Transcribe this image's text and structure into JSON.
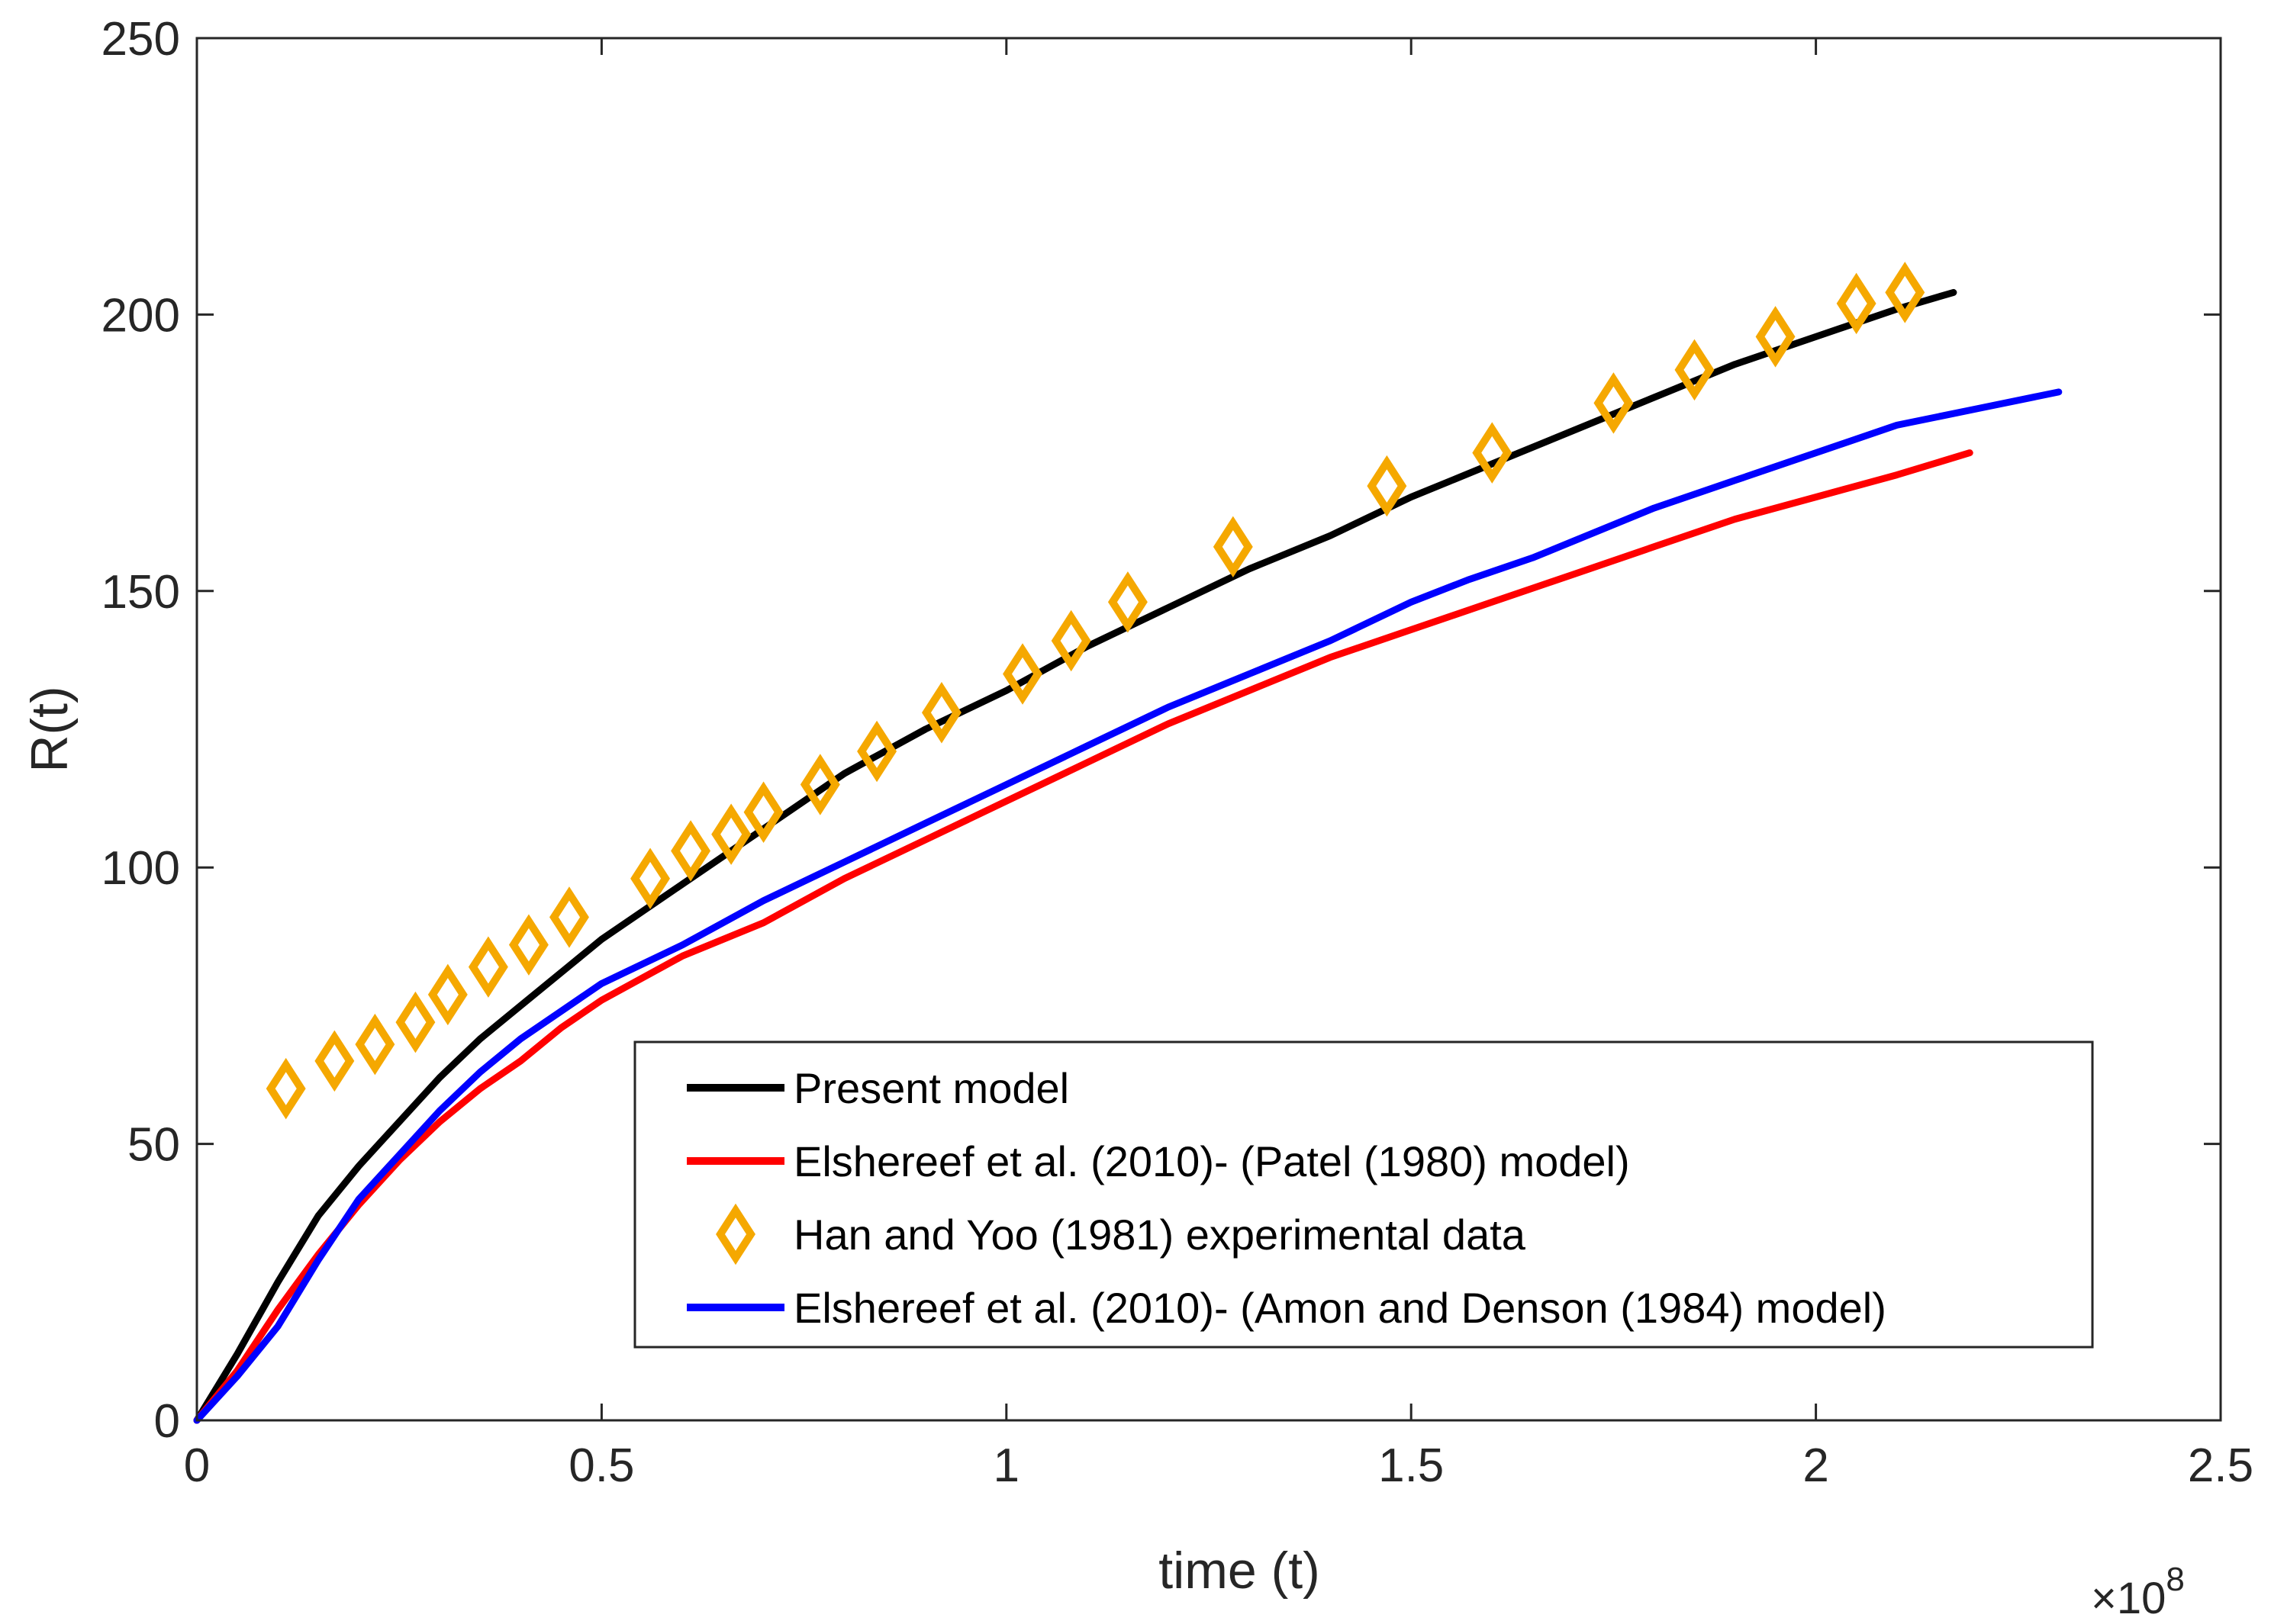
{
  "chart_data": {
    "type": "line",
    "title": "",
    "xlabel": "time (t)",
    "ylabel": "R(t)",
    "x_exponent_base": "×10",
    "x_exponent_power": "8",
    "xlim": [
      0,
      2.5
    ],
    "ylim": [
      0,
      250
    ],
    "xticks": [
      0,
      0.5,
      1,
      1.5,
      2,
      2.5
    ],
    "xtick_labels": [
      "0",
      "0.5",
      "1",
      "1.5",
      "2",
      "2.5"
    ],
    "yticks": [
      0,
      50,
      100,
      150,
      200,
      250
    ],
    "ytick_labels": [
      "0",
      "50",
      "100",
      "150",
      "200",
      "250"
    ],
    "grid": false,
    "legend_position": "bottom-right",
    "series": [
      {
        "name": "Present model",
        "kind": "line",
        "color": "#000000",
        "x": [
          0,
          0.05,
          0.1,
          0.15,
          0.2,
          0.25,
          0.3,
          0.35,
          0.4,
          0.45,
          0.5,
          0.6,
          0.7,
          0.8,
          0.9,
          1.0,
          1.1,
          1.2,
          1.3,
          1.4,
          1.5,
          1.6,
          1.7,
          1.8,
          1.9,
          2.0,
          2.1,
          2.17
        ],
        "y": [
          0,
          12,
          25,
          37,
          46,
          54,
          62,
          69,
          75,
          81,
          87,
          97,
          107,
          117,
          125,
          132,
          140,
          147,
          154,
          160,
          167,
          173,
          179,
          185,
          191,
          196,
          201,
          204
        ]
      },
      {
        "name": "Elshereef et al. (2010)- (Patel (1980) model)",
        "kind": "line",
        "color": "#ff0000",
        "x": [
          0,
          0.05,
          0.1,
          0.15,
          0.2,
          0.25,
          0.3,
          0.35,
          0.4,
          0.45,
          0.5,
          0.6,
          0.7,
          0.8,
          0.9,
          1.0,
          1.1,
          1.2,
          1.3,
          1.4,
          1.5,
          1.6,
          1.7,
          1.8,
          1.9,
          2.0,
          2.1,
          2.19
        ],
        "y": [
          0,
          9,
          20,
          30,
          39,
          47,
          54,
          60,
          65,
          71,
          76,
          84,
          90,
          98,
          105,
          112,
          119,
          126,
          132,
          138,
          143,
          148,
          153,
          158,
          163,
          167,
          171,
          175
        ]
      },
      {
        "name": "Han and Yoo (1981) experimental data",
        "kind": "scatter",
        "marker": "diamond",
        "color": "#f5a800",
        "x": [
          0.11,
          0.17,
          0.22,
          0.27,
          0.31,
          0.36,
          0.41,
          0.46,
          0.56,
          0.61,
          0.66,
          0.7,
          0.77,
          0.84,
          0.92,
          1.02,
          1.08,
          1.15,
          1.28,
          1.47,
          1.6,
          1.75,
          1.85,
          1.95,
          2.05,
          2.11
        ],
        "y": [
          60,
          65,
          68,
          72,
          77,
          82,
          86,
          91,
          98,
          103,
          106,
          110,
          115,
          121,
          128,
          135,
          141,
          148,
          158,
          169,
          175,
          184,
          190,
          196,
          202,
          204
        ]
      },
      {
        "name": "Elshereef et al. (2010)- (Amon and Denson (1984) model)",
        "kind": "line",
        "color": "#0000ff",
        "x": [
          0,
          0.05,
          0.1,
          0.15,
          0.2,
          0.25,
          0.3,
          0.35,
          0.4,
          0.45,
          0.5,
          0.6,
          0.7,
          0.8,
          0.9,
          1.0,
          1.1,
          1.2,
          1.3,
          1.4,
          1.5,
          1.57,
          1.65,
          1.7,
          1.8,
          1.9,
          2.0,
          2.1,
          2.2,
          2.3
        ],
        "y": [
          0,
          8,
          17,
          29,
          40,
          48,
          56,
          63,
          69,
          74,
          79,
          86,
          94,
          101,
          108,
          115,
          122,
          129,
          135,
          141,
          148,
          152,
          156,
          159,
          165,
          170,
          175,
          180,
          183,
          186
        ]
      }
    ]
  }
}
